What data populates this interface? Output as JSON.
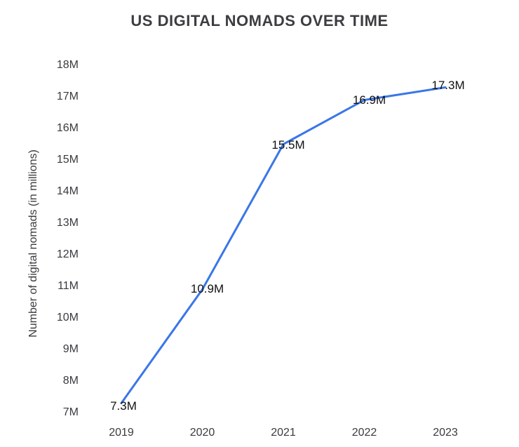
{
  "chart": {
    "title": "US DIGITAL NOMADS OVER TIME",
    "y_axis_title": "Number of digital nomads (in millions)"
  },
  "chart_data": {
    "type": "line",
    "title": "US DIGITAL NOMADS OVER TIME",
    "xlabel": "",
    "ylabel": "Number of digital nomads (in millions)",
    "categories": [
      "2019",
      "2020",
      "2021",
      "2022",
      "2023"
    ],
    "values": [
      7.3,
      10.9,
      15.5,
      16.9,
      17.3
    ],
    "data_labels": [
      "7.3M",
      "10.9M",
      "15.5M",
      "16.9M",
      "17.3M"
    ],
    "y_tick_labels": [
      "7M",
      "8M",
      "9M",
      "10M",
      "11M",
      "12M",
      "13M",
      "14M",
      "15M",
      "16M",
      "17M",
      "18M"
    ],
    "ylim": [
      7,
      18
    ],
    "grid": false,
    "legend_position": "none",
    "line_color": "#3a76e8",
    "title_color": "#3d3d42",
    "axis_text_color": "#3b3b40",
    "data_label_color": "#111111",
    "background_color": "#ffffff"
  }
}
